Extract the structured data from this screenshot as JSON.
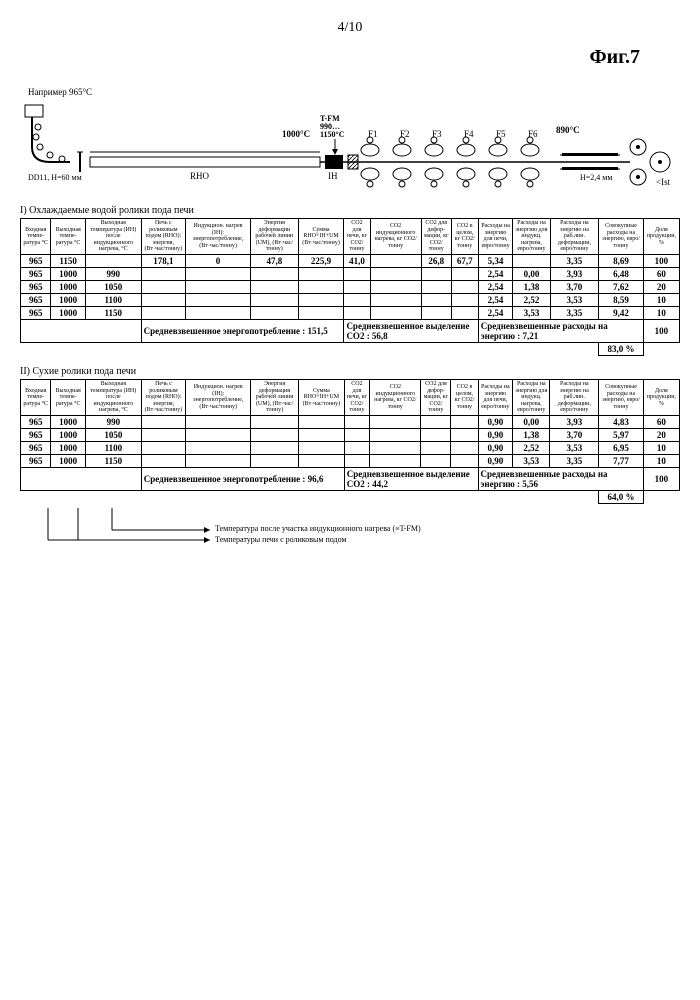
{
  "page_number": "4/10",
  "figure_title": "Фиг.7",
  "diagram": {
    "labels": {
      "example_temp": "Например 965°C",
      "material": "DD11, H=60 мм",
      "temp_1000": "1000°C",
      "tfm": "T-FM\n990…\n1150°C",
      "rho_label": "RHO",
      "ih_label": "IH",
      "stands": [
        "F1",
        "F2",
        "F3",
        "F4",
        "F5",
        "F6"
      ],
      "end_temp": "890°C",
      "end_h": "H=2,4 мм",
      "ist": "<Ist"
    }
  },
  "section_a_title": "I) Охлаждаемые водой ролики пода печи",
  "columns": [
    "Входная темпе- ратура °C",
    "Выходная темпе- ратура °C",
    "Выходная температура (ИН) после индукционного нагрева, °C",
    "Печь с роликовым подом (RHO): энергия, (Вт·час/тонну)",
    "Индукцион. нагрев (IH): энергопотребление, (Вт·час/тонну)",
    "Энергия деформации рабочей линии (UM), (Вт·час/тонну)",
    "Сумма RHO+IH+UM (Вт·час/тонну)",
    "CO2 для печи, кг CO2/тонну",
    "CO2 индукционного нагрева, кг CO2/тонну",
    "CO2 для дефор- мации, кг CO2/тонну",
    "CO2 в целом, кг CO2/тонну",
    "Расходы на энергию для печи, евро/тонну",
    "Расходы на энергию для индукц. нагрева, евро/тонну",
    "Расходы на энергию на раб.лин. деформации, евро/тонну",
    "Совокупные расходы на энергию, евро/тонну",
    "Доля продукции, %"
  ],
  "section_a": {
    "top_row": [
      "965",
      "1150",
      "",
      "178,1",
      "0",
      "47,8",
      "225,9",
      "41,0",
      "",
      "26,8",
      "67,7",
      "5,34",
      "",
      "3,35",
      "8,69",
      "100"
    ],
    "rows": [
      [
        "965",
        "1000",
        "990",
        "",
        "",
        "",
        "",
        "",
        "",
        "",
        "",
        "2,54",
        "0,00",
        "3,93",
        "6,48",
        "60"
      ],
      [
        "965",
        "1000",
        "1050",
        "",
        "",
        "",
        "",
        "",
        "",
        "",
        "",
        "2,54",
        "1,38",
        "3,70",
        "7,62",
        "20"
      ],
      [
        "965",
        "1000",
        "1100",
        "",
        "",
        "",
        "",
        "",
        "",
        "",
        "",
        "2,54",
        "2,52",
        "3,53",
        "8,59",
        "10"
      ],
      [
        "965",
        "1000",
        "1150",
        "",
        "",
        "",
        "",
        "",
        "",
        "",
        "",
        "2,54",
        "3,53",
        "3,35",
        "9,42",
        "10"
      ]
    ],
    "summary1": "Средневзвешенное энергопотребление : 151,5",
    "summary2": "Средневзвешенное выделение CO2 : 56,8",
    "summary3": "Средневзвешенные расходы на энергию : 7,21",
    "summary_pct": "100",
    "ratio": "83,0 %"
  },
  "section_b_title": "II) Сухие ролики пода печи",
  "section_b": {
    "rows": [
      [
        "965",
        "1000",
        "990",
        "",
        "",
        "",
        "",
        "",
        "",
        "",
        "",
        "0,90",
        "0,00",
        "3,93",
        "4,83",
        "60"
      ],
      [
        "965",
        "1000",
        "1050",
        "",
        "",
        "",
        "",
        "",
        "",
        "",
        "",
        "0,90",
        "1,38",
        "3,70",
        "5,97",
        "20"
      ],
      [
        "965",
        "1000",
        "1100",
        "",
        "",
        "",
        "",
        "",
        "",
        "",
        "",
        "0,90",
        "2,52",
        "3,53",
        "6,95",
        "10"
      ],
      [
        "965",
        "1000",
        "1150",
        "",
        "",
        "",
        "",
        "",
        "",
        "",
        "",
        "0,90",
        "3,53",
        "3,35",
        "7,77",
        "10"
      ]
    ],
    "summary1": "Средневзвешенное энергопотребление : 96,6",
    "summary2": "Средневзвешенное выделение CO2 : 44,2",
    "summary3": "Средневзвешенные расходы на энергию : 5,56",
    "summary_pct": "100",
    "ratio": "64,0 %"
  },
  "footnotes": {
    "line1": "Температура после участка индукционного нагрева (≡T-FM)",
    "line2": "Температуры печи с роликовым подом"
  }
}
